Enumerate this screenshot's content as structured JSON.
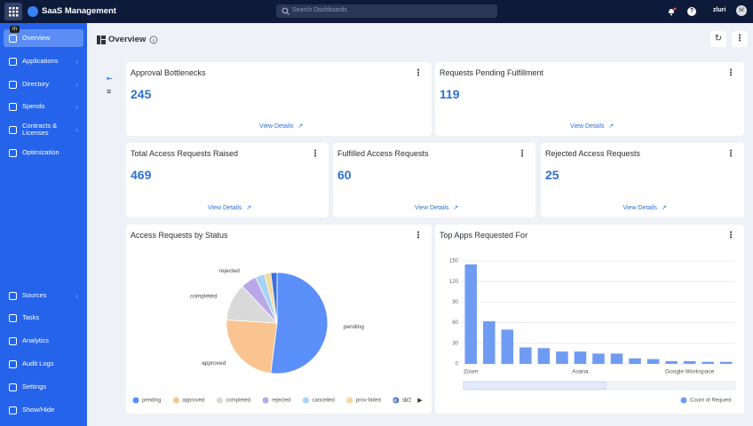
{
  "header": {
    "app_title": "SaaS Management",
    "search_placeholder": "Search Dashboards",
    "tooltip": "m",
    "brand": "zluri",
    "avatar": "M"
  },
  "sidebar": {
    "items": [
      "Overview",
      "Applications",
      "Directory",
      "Spends",
      "Contracts & Licenses",
      "Optimization"
    ],
    "bottom_items": [
      "Sources",
      "Tasks",
      "Analytics",
      "Audit Logs",
      "Settings",
      "Show/Hide"
    ]
  },
  "page": {
    "title": "Overview"
  },
  "kpis": [
    {
      "title": "Approval Bottlenecks",
      "value": 245,
      "link": "View Details"
    },
    {
      "title": "Requests Pending Fulfillment",
      "value": 119,
      "link": "View Details"
    },
    {
      "title": "Total Access Requests Raised",
      "value": 469,
      "link": "View Details"
    },
    {
      "title": "Fulfilled Access Requests",
      "value": 60,
      "link": "View Details"
    },
    {
      "title": "Rejected Access Requests",
      "value": 25,
      "link": "View Details"
    }
  ],
  "chart_data": [
    {
      "type": "pie",
      "title": "Access Requests by Status",
      "categories": [
        "pending",
        "approved",
        "completed",
        "rejected",
        "cancelled",
        "prov-failed",
        "su"
      ],
      "values": [
        52,
        24,
        12,
        5,
        3,
        2,
        2
      ],
      "colors": [
        "#5b8ff9",
        "#f9c490",
        "#d9d9d9",
        "#b9a7e8",
        "#a7d3f5",
        "#f5d99b",
        "#3b6fe0"
      ],
      "legend_page": "1/2"
    },
    {
      "type": "bar",
      "title": "Top Apps Requested For",
      "categories": [
        "Zoom",
        null,
        null,
        null,
        null,
        null,
        "Asana",
        null,
        null,
        null,
        null,
        null,
        "Google Workspace",
        null,
        null
      ],
      "series": [
        {
          "name": "Count of Request",
          "color": "#6f9cf2",
          "values": [
            145,
            62,
            50,
            24,
            23,
            18,
            18,
            15,
            15,
            8,
            7,
            4,
            4,
            3,
            3
          ]
        }
      ],
      "ylim": [
        0,
        150
      ],
      "yticks": [
        0,
        30,
        60,
        90,
        120,
        150
      ],
      "grid": true
    }
  ]
}
